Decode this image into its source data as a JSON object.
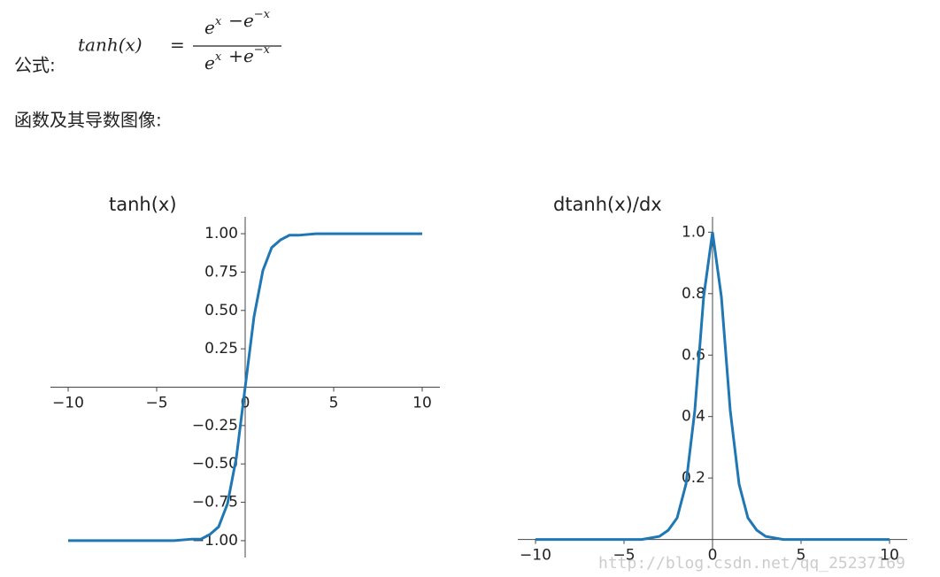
{
  "formula": {
    "label": "公式:",
    "lhs": "tanh(x)",
    "equals": "=",
    "numerator": [
      {
        "base": "e",
        "sup": "x"
      },
      {
        "op": "−"
      },
      {
        "base": "e",
        "sup": "−x"
      }
    ],
    "denominator": [
      {
        "base": "e",
        "sup": "x"
      },
      {
        "op": "+"
      },
      {
        "base": "e",
        "sup": "−x"
      }
    ]
  },
  "heading": "函数及其导数图像:",
  "watermark": "http://blog.csdn.net/qq_25237169",
  "chart_data": [
    {
      "type": "line",
      "title": "tanh(x)",
      "color": "#1f77b4",
      "x": [
        -10,
        -8,
        -6,
        -4,
        -3,
        -2.5,
        -2,
        -1.5,
        -1,
        -0.5,
        0,
        0.5,
        1,
        1.5,
        2,
        2.5,
        3,
        4,
        6,
        8,
        10
      ],
      "values": [
        -1,
        -1,
        -1,
        -1,
        -0.99,
        -0.99,
        -0.96,
        -0.91,
        -0.76,
        -0.46,
        0,
        0.46,
        0.76,
        0.91,
        0.96,
        0.99,
        0.99,
        1,
        1,
        1,
        1
      ],
      "xlim": [
        -11,
        11
      ],
      "ylim": [
        -1.11,
        1.11
      ],
      "xticks": [
        {
          "value": -10,
          "label": "−10"
        },
        {
          "value": -5,
          "label": "−5"
        },
        0,
        5,
        10
      ],
      "yticks": [
        {
          "value": -1,
          "label": "−1.00"
        },
        {
          "value": -0.75,
          "label": "−0.75"
        },
        {
          "value": -0.5,
          "label": "−0.50"
        },
        {
          "value": -0.25,
          "label": "−0.25"
        },
        {
          "value": 0.25,
          "label": "0.25"
        },
        {
          "value": 0.5,
          "label": "0.50"
        },
        {
          "value": 0.75,
          "label": "0.75"
        },
        {
          "value": 1,
          "label": "1.00"
        }
      ]
    },
    {
      "type": "line",
      "title": "dtanh(x)/dx",
      "color": "#1f77b4",
      "x": [
        -10,
        -8,
        -6,
        -4,
        -3,
        -2.5,
        -2,
        -1.5,
        -1,
        -0.5,
        0,
        0.5,
        1,
        1.5,
        2,
        2.5,
        3,
        4,
        6,
        8,
        10
      ],
      "values": [
        0,
        0,
        0,
        0,
        0.01,
        0.03,
        0.07,
        0.18,
        0.42,
        0.79,
        1,
        0.79,
        0.42,
        0.18,
        0.07,
        0.03,
        0.01,
        0,
        0,
        0,
        0
      ],
      "xlim": [
        -11,
        11
      ],
      "ylim": [
        -0.03,
        1.05
      ],
      "xticks": [
        {
          "value": -10,
          "label": "−10"
        },
        {
          "value": -5,
          "label": "−5"
        },
        0,
        5,
        10
      ],
      "yticks": [
        0.2,
        0.4,
        0.6,
        0.8,
        {
          "value": 1,
          "label": "1.0"
        }
      ]
    }
  ]
}
